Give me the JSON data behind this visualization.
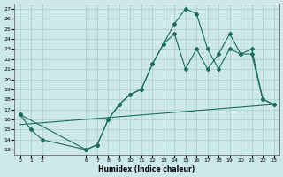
{
  "xlabel": "Humidex (Indice chaleur)",
  "bg_color": "#cce8e8",
  "line_color": "#1a6b5a",
  "grid_color": "#aacccc",
  "xlim": [
    -0.5,
    23.5
  ],
  "ylim": [
    12.5,
    27.5
  ],
  "xticks": [
    0,
    1,
    2,
    6,
    7,
    8,
    9,
    10,
    11,
    12,
    13,
    14,
    15,
    16,
    17,
    18,
    19,
    20,
    21,
    22,
    23
  ],
  "yticks": [
    13,
    14,
    15,
    16,
    17,
    18,
    19,
    20,
    21,
    22,
    23,
    24,
    25,
    26,
    27
  ],
  "line1_x": [
    0,
    1,
    2,
    6,
    7,
    8,
    9,
    10,
    11,
    12,
    13,
    14,
    15,
    16,
    17,
    18,
    19,
    20,
    21,
    22,
    23
  ],
  "line1_y": [
    16.5,
    15.0,
    14.0,
    13.0,
    13.5,
    16.0,
    17.5,
    18.5,
    19.0,
    21.5,
    23.5,
    25.5,
    27.0,
    26.5,
    23.0,
    21.0,
    23.0,
    22.5,
    23.0,
    18.0,
    17.5
  ],
  "line2_x": [
    0,
    23
  ],
  "line2_y": [
    15.5,
    17.5
  ],
  "line3_x": [
    0,
    6,
    7,
    8,
    9,
    10,
    11,
    12,
    13,
    14,
    15,
    16,
    17,
    18,
    19,
    20,
    21,
    22,
    23
  ],
  "line3_y": [
    16.5,
    13.0,
    13.5,
    16.0,
    17.5,
    18.5,
    19.0,
    21.5,
    23.5,
    24.5,
    21.0,
    23.0,
    21.0,
    22.5,
    24.5,
    22.5,
    22.5,
    18.0,
    17.5
  ]
}
